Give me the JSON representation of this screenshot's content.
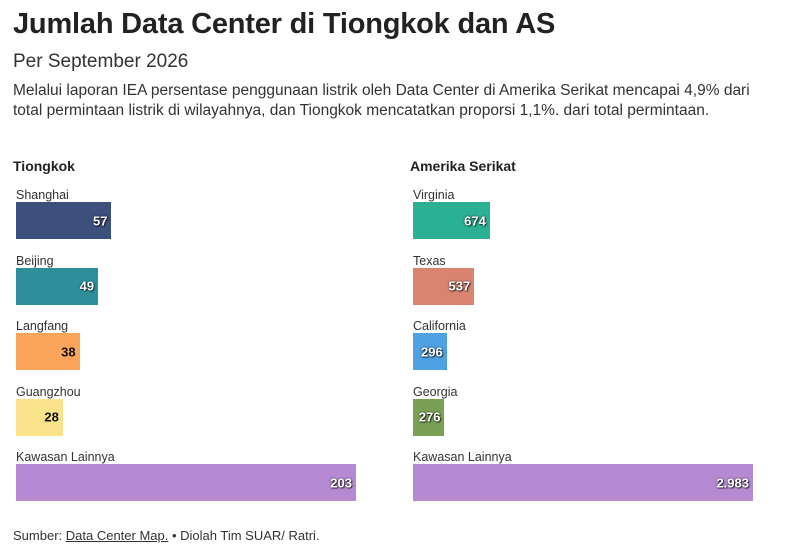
{
  "title": "Jumlah Data Center di Tiongkok dan AS",
  "subtitle": "Per September 2026",
  "description": "Melalui laporan IEA persentase penggunaan listrik oleh Data Center di Amerika Serikat mencapai 4,9% dari total permintaan listrik di wilayahnya, dan Tiongkok mencatatkan proporsi 1,1%. dari total permintaan.",
  "source": {
    "prefix": "Sumber: ",
    "link_text": "Data Center Map.",
    "suffix": " • Diolah Tim SUAR/ Ratri."
  },
  "chart_data": [
    {
      "type": "bar",
      "orientation": "horizontal",
      "title": "Tiongkok",
      "categories": [
        "Shanghai",
        "Beijing",
        "Langfang",
        "Guangzhou",
        "Kawasan Lainnya"
      ],
      "values": [
        57,
        49,
        38,
        28,
        203
      ],
      "value_labels": [
        "57",
        "49",
        "38",
        "28",
        "203"
      ],
      "colors": [
        "#3d4f7c",
        "#2e8f9a",
        "#fba55a",
        "#fae38b",
        "#b58ad2"
      ],
      "label_colors": [
        "light",
        "light",
        "dark",
        "dark",
        "light"
      ],
      "xlim": [
        0,
        203
      ]
    },
    {
      "type": "bar",
      "orientation": "horizontal",
      "title": "Amerika Serikat",
      "categories": [
        "Virginia",
        "Texas",
        "California",
        "Georgia",
        "Kawasan Lainnya"
      ],
      "values": [
        674,
        537,
        296,
        276,
        2983
      ],
      "value_labels": [
        "674",
        "537",
        "296",
        "276",
        "2.983"
      ],
      "colors": [
        "#2bb093",
        "#d98371",
        "#4ea1e2",
        "#7aa055",
        "#b58ad2"
      ],
      "label_colors": [
        "light",
        "light",
        "light",
        "light",
        "light"
      ],
      "xlim": [
        0,
        2983
      ]
    }
  ]
}
